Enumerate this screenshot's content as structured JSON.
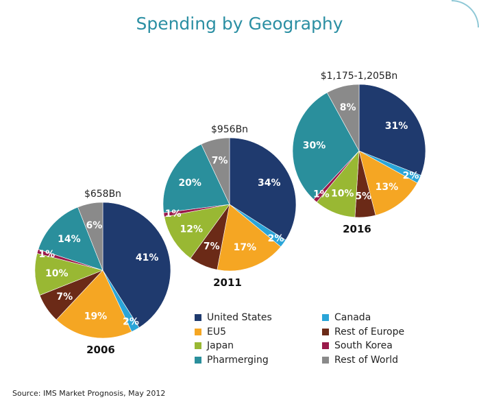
{
  "title": "Spending by Geography",
  "source": "Source: IMS Market Prognosis, May 2012",
  "colors": {
    "United States": "#1f3a6e",
    "Canada": "#2aa5d8",
    "EU5": "#f5a623",
    "Rest of Europe": "#6b2a17",
    "Japan": "#99b833",
    "South Korea": "#9a1a4a",
    "Pharmerging": "#2a8f9c",
    "Rest of World": "#8a8a8a"
  },
  "legend": [
    {
      "label": "United States",
      "color": "#1f3a6e"
    },
    {
      "label": "Canada",
      "color": "#2aa5d8"
    },
    {
      "label": "EU5",
      "color": "#f5a623"
    },
    {
      "label": "Rest of Europe",
      "color": "#6b2a17"
    },
    {
      "label": "Japan",
      "color": "#99b833"
    },
    {
      "label": "South Korea",
      "color": "#9a1a4a"
    },
    {
      "label": "Pharmerging",
      "color": "#2a8f9c"
    },
    {
      "label": "Rest of World",
      "color": "#8a8a8a"
    }
  ],
  "chart_data": {
    "type": "pie",
    "title": "Spending by Geography",
    "pies": [
      {
        "year": "2006",
        "total": "$658Bn",
        "slices": [
          {
            "label": "United States",
            "value": 41,
            "text": "41%"
          },
          {
            "label": "Canada",
            "value": 2,
            "text": "2%"
          },
          {
            "label": "EU5",
            "value": 19,
            "text": "19%"
          },
          {
            "label": "Rest of Europe",
            "value": 7,
            "text": "7%"
          },
          {
            "label": "Japan",
            "value": 10,
            "text": "10%"
          },
          {
            "label": "South Korea",
            "value": 1,
            "text": "1%"
          },
          {
            "label": "Pharmerging",
            "value": 14,
            "text": "14%"
          },
          {
            "label": "Rest of World",
            "value": 6,
            "text": "6%"
          }
        ]
      },
      {
        "year": "2011",
        "total": "$956Bn",
        "slices": [
          {
            "label": "United States",
            "value": 34,
            "text": "34%"
          },
          {
            "label": "Canada",
            "value": 2,
            "text": "2%"
          },
          {
            "label": "EU5",
            "value": 17,
            "text": "17%"
          },
          {
            "label": "Rest of Europe",
            "value": 7,
            "text": "7%"
          },
          {
            "label": "Japan",
            "value": 12,
            "text": "12%"
          },
          {
            "label": "South Korea",
            "value": 1,
            "text": "1%"
          },
          {
            "label": "Pharmerging",
            "value": 20,
            "text": "20%"
          },
          {
            "label": "Rest of World",
            "value": 7,
            "text": "7%"
          }
        ]
      },
      {
        "year": "2016",
        "total": "$1,175-1,205Bn",
        "slices": [
          {
            "label": "United States",
            "value": 31,
            "text": "31%"
          },
          {
            "label": "Canada",
            "value": 2,
            "text": "2%"
          },
          {
            "label": "EU5",
            "value": 13,
            "text": "13%"
          },
          {
            "label": "Rest of Europe",
            "value": 5,
            "text": "5%"
          },
          {
            "label": "Japan",
            "value": 10,
            "text": "10%"
          },
          {
            "label": "South Korea",
            "value": 1,
            "text": "1%"
          },
          {
            "label": "Pharmerging",
            "value": 30,
            "text": "30%"
          },
          {
            "label": "Rest of World",
            "value": 8,
            "text": "8%"
          }
        ]
      }
    ]
  }
}
